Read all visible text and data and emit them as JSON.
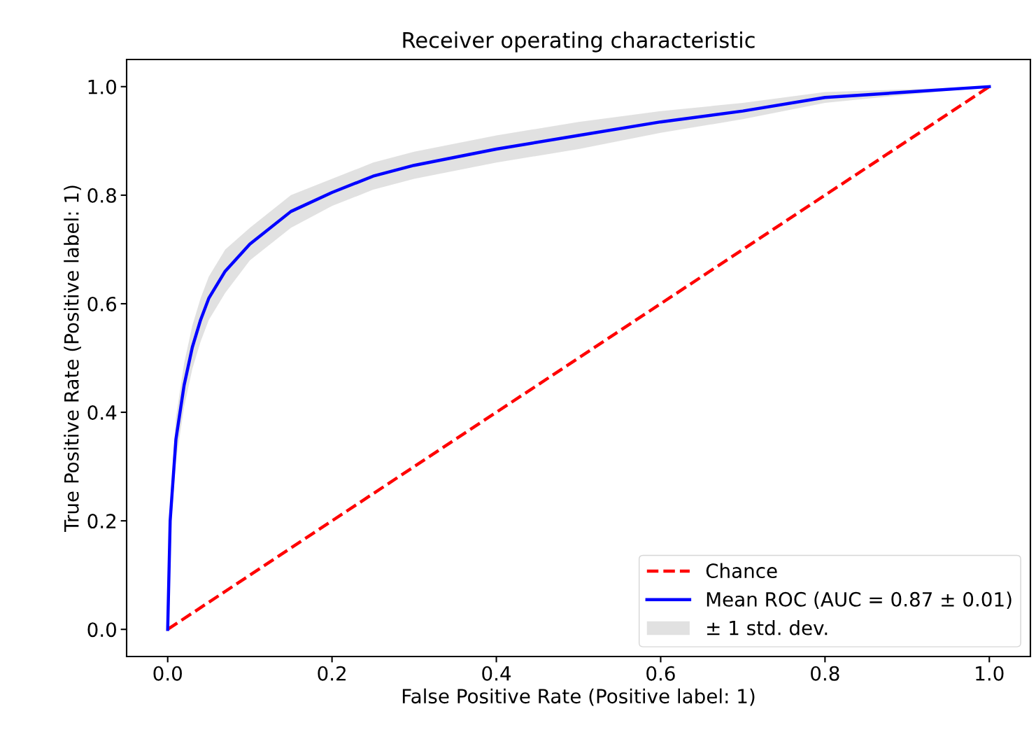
{
  "chart_data": {
    "type": "line",
    "title": "Receiver operating characteristic",
    "xlabel": "False Positive Rate (Positive label: 1)",
    "ylabel": "True Positive Rate (Positive label: 1)",
    "xlim": [
      -0.05,
      1.05
    ],
    "ylim": [
      -0.05,
      1.05
    ],
    "xticks": [
      {
        "value": 0,
        "label": "0.0"
      },
      0.2,
      0.4,
      0.6,
      0.8,
      {
        "value": 1,
        "label": "1.0"
      }
    ],
    "yticks": [
      {
        "value": 0,
        "label": "0.0"
      },
      0.2,
      0.4,
      0.6,
      0.8,
      {
        "value": 1,
        "label": "1.0"
      }
    ],
    "grid": false,
    "legend": "bottom right",
    "marker": "none",
    "series": [
      {
        "name": "Chance",
        "color": "#ff0000",
        "line_style": "dashed",
        "x": [
          0,
          1
        ],
        "values": [
          0,
          1
        ]
      },
      {
        "name": "Mean ROC (AUC = 0.87 ± 0.01)",
        "color": "#0000ff",
        "line_style": "solid",
        "x": [
          0,
          0.003,
          0.01,
          0.02,
          0.03,
          0.04,
          0.05,
          0.07,
          0.1,
          0.15,
          0.2,
          0.25,
          0.3,
          0.4,
          0.5,
          0.6,
          0.7,
          0.8,
          0.9,
          1.0
        ],
        "values": [
          0,
          0.2,
          0.35,
          0.45,
          0.52,
          0.57,
          0.61,
          0.66,
          0.71,
          0.77,
          0.805,
          0.835,
          0.855,
          0.885,
          0.91,
          0.935,
          0.955,
          0.98,
          0.99,
          1.0
        ],
        "lower": [
          0,
          0.17,
          0.31,
          0.41,
          0.48,
          0.53,
          0.57,
          0.62,
          0.68,
          0.74,
          0.78,
          0.81,
          0.83,
          0.86,
          0.885,
          0.915,
          0.94,
          0.97,
          0.985,
          1.0
        ],
        "upper": [
          0,
          0.23,
          0.39,
          0.49,
          0.56,
          0.61,
          0.65,
          0.7,
          0.74,
          0.8,
          0.83,
          0.86,
          0.88,
          0.91,
          0.935,
          0.955,
          0.97,
          0.99,
          0.995,
          1.0
        ]
      },
      {
        "name": "± 1 std. dev.",
        "type": "area",
        "color": "#a9a9a9"
      }
    ]
  }
}
